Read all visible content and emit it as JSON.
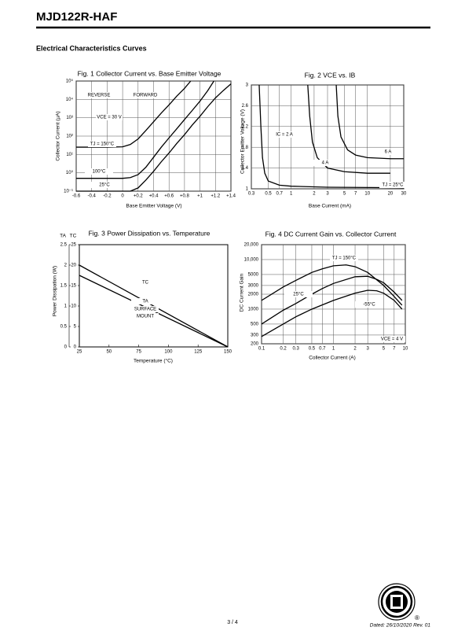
{
  "header": {
    "title": "MJD122R-HAF"
  },
  "section_title": "Electrical Characteristics Curves",
  "chart_data": [
    {
      "type": "line",
      "title": "Fig. 1 Collector Current vs. Base Emitter Voltage",
      "xlabel": "Base Emitter Voltage (V)",
      "ylabel": "Collector Current (µA)",
      "xscale": "linear",
      "yscale": "log",
      "xlim": [
        -0.6,
        1.4
      ],
      "ylim": [
        0.1,
        100000
      ],
      "xticks": [
        -0.6,
        -0.4,
        -0.2,
        0,
        {
          "value": 0.2,
          "label": "+0.2"
        },
        {
          "value": 0.4,
          "label": "+0.4"
        },
        {
          "value": 0.6,
          "label": "+0.6"
        },
        {
          "value": 0.8,
          "label": "+0.8"
        },
        {
          "value": 1,
          "label": "+1"
        },
        {
          "value": 1.2,
          "label": "+1.2"
        },
        {
          "value": 1.4,
          "label": "+1.4"
        }
      ],
      "yticks": [
        {
          "value": 0.1,
          "label": "10⁻¹"
        },
        {
          "value": 1,
          "label": "10⁰"
        },
        {
          "value": 10,
          "label": "10¹"
        },
        {
          "value": 100,
          "label": "10²"
        },
        {
          "value": 1000,
          "label": "10³"
        },
        {
          "value": 10000,
          "label": "10⁴"
        },
        {
          "value": 100000,
          "label": "10⁵"
        }
      ],
      "grid": true,
      "annotations": [
        "REVERSE",
        "FORWARD",
        "VCE = 30 V"
      ],
      "series": [
        {
          "name": "TJ = 150°C",
          "color": "#000",
          "x": [
            -0.6,
            -0.4,
            -0.2,
            0,
            0.1,
            0.2,
            0.3,
            0.4,
            0.5,
            0.6,
            0.7,
            0.8,
            0.88
          ],
          "values": [
            25,
            25,
            25,
            26,
            35,
            70,
            200,
            600,
            1800,
            5000,
            15000,
            40000,
            100000
          ]
        },
        {
          "name": "100°C",
          "color": "#000",
          "x": [
            -0.6,
            -0.4,
            -0.2,
            0,
            0.1,
            0.2,
            0.3,
            0.4,
            0.5,
            0.6,
            0.7,
            0.8,
            0.9,
            1.0,
            1.1,
            1.18
          ],
          "values": [
            0.5,
            0.5,
            0.5,
            0.5,
            0.55,
            0.8,
            2,
            7,
            25,
            80,
            250,
            800,
            2500,
            8000,
            30000,
            100000
          ]
        },
        {
          "name": "25°C",
          "color": "#000",
          "x": [
            -0.6,
            -0.4,
            -0.2,
            0,
            0.1,
            0.2,
            0.3,
            0.4,
            0.5,
            0.6,
            0.7,
            0.8,
            0.9,
            1.0,
            1.1,
            1.2,
            1.3,
            1.4
          ],
          "values": [
            0.1,
            0.1,
            0.1,
            0.1,
            0.1,
            0.15,
            0.4,
            1.2,
            4,
            12,
            40,
            120,
            400,
            1200,
            4000,
            12000,
            30000,
            70000
          ]
        }
      ]
    },
    {
      "type": "line",
      "title": "Fig. 2 VCE vs. IB",
      "xlabel": "Base Current (mA)",
      "ylabel": "Collector Emitter Voltage (V)",
      "xscale": "log",
      "yscale": "linear",
      "xlim": [
        0.3,
        30
      ],
      "ylim": [
        1,
        3
      ],
      "xticks": [
        0.3,
        0.5,
        0.7,
        1,
        2,
        3,
        5,
        7,
        10,
        20,
        30
      ],
      "yticks": [
        1,
        1.4,
        1.8,
        2.2,
        2.6,
        3
      ],
      "grid": true,
      "annotations": [
        "TJ = 25°C"
      ],
      "series": [
        {
          "name": "IC = 2 A",
          "color": "#000",
          "x": [
            0.38,
            0.4,
            0.42,
            0.45,
            0.5,
            0.7,
            1,
            3,
            30
          ],
          "values": [
            3,
            2.2,
            1.6,
            1.3,
            1.15,
            1.07,
            1.05,
            1.03,
            1.02
          ]
        },
        {
          "name": "4 A",
          "color": "#000",
          "x": [
            1.65,
            1.75,
            1.9,
            2.2,
            3,
            5,
            10,
            20
          ],
          "values": [
            3,
            2.4,
            1.9,
            1.6,
            1.4,
            1.33,
            1.3,
            1.3
          ]
        },
        {
          "name": "6 A",
          "color": "#000",
          "x": [
            3.9,
            4.1,
            4.5,
            5.5,
            7,
            10,
            20,
            30
          ],
          "values": [
            3,
            2.4,
            2,
            1.75,
            1.65,
            1.6,
            1.58,
            1.58
          ]
        }
      ]
    },
    {
      "type": "line",
      "title": "Fig. 3 Power Dissipation vs. Temperature",
      "xlabel": "Temperature (°C)",
      "ylabel": "Power Dissipation (W)",
      "y_axis_title": "TC",
      "y2_axis_title": "TA",
      "xscale": "linear",
      "yscale": "linear",
      "xlim": [
        25,
        150
      ],
      "ylim": [
        0,
        25
      ],
      "y2lim": [
        0,
        2.5
      ],
      "xticks": [
        25,
        50,
        75,
        100,
        125,
        150
      ],
      "yticks": [
        0,
        5,
        10,
        15,
        20,
        25
      ],
      "y2ticks": [
        0,
        0.5,
        1,
        1.5,
        2,
        2.5
      ],
      "grid": false,
      "annotations": [
        "SURFACE",
        "MOUNT"
      ],
      "series": [
        {
          "name": "TC",
          "color": "#000",
          "x": [
            25,
            150
          ],
          "values": [
            20,
            0
          ]
        },
        {
          "name": "TA",
          "color": "#000",
          "axis": "y2",
          "x": [
            25,
            150
          ],
          "values": [
            1.75,
            0
          ]
        }
      ]
    },
    {
      "type": "line",
      "title": "Fig. 4 DC Current Gain vs. Collector Current",
      "xlabel": "Collector Current (A)",
      "ylabel": "DC Current Gain",
      "xscale": "log",
      "yscale": "log",
      "xlim": [
        0.1,
        10
      ],
      "ylim": [
        200,
        20000
      ],
      "xticks": [
        0.1,
        0.2,
        0.3,
        0.5,
        0.7,
        1,
        2,
        3,
        5,
        7,
        10
      ],
      "yticks": [
        200,
        300,
        500,
        1000,
        2000,
        3000,
        5000,
        {
          "value": 10000,
          "label": "10,000"
        },
        {
          "value": 20000,
          "label": "20,000"
        }
      ],
      "grid": true,
      "annotations": [
        "VCE = 4 V"
      ],
      "series": [
        {
          "name": "TJ = 150°C",
          "color": "#000",
          "x": [
            0.1,
            0.2,
            0.3,
            0.5,
            0.7,
            1,
            1.5,
            2,
            3,
            5,
            7,
            9
          ],
          "values": [
            1500,
            2800,
            3800,
            5500,
            6500,
            7500,
            7800,
            7200,
            5500,
            3000,
            1800,
            1200
          ]
        },
        {
          "name": "25°C",
          "color": "#000",
          "x": [
            0.1,
            0.2,
            0.3,
            0.5,
            0.7,
            1,
            2,
            3,
            4,
            5,
            7,
            9
          ],
          "values": [
            500,
            950,
            1300,
            2000,
            2600,
            3300,
            4500,
            4600,
            4000,
            3400,
            2200,
            1500
          ]
        },
        {
          "name": "-55°C",
          "color": "#000",
          "x": [
            0.1,
            0.2,
            0.3,
            0.5,
            1,
            2,
            3,
            4,
            5,
            7,
            9
          ],
          "values": [
            280,
            500,
            700,
            1000,
            1500,
            2100,
            2400,
            2350,
            2100,
            1500,
            1000
          ]
        }
      ]
    }
  ],
  "footer": {
    "page": "3 / 4",
    "dated": "Dated: 26/10/2020 Rev. 01"
  }
}
